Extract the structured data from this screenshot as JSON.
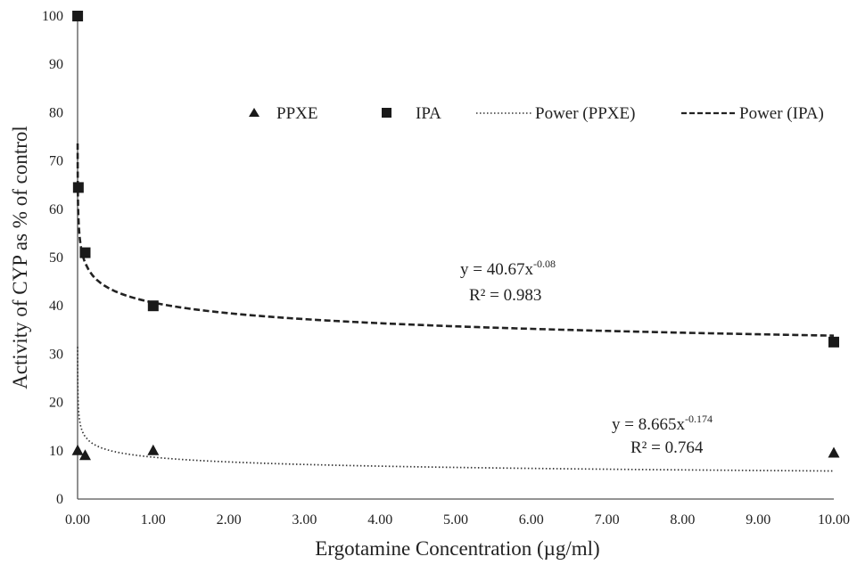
{
  "chart_data": {
    "type": "scatter",
    "xlabel": "Ergotamine Concentration (µg/ml)",
    "ylabel": "Activity of CYP as % of control",
    "xlim": [
      0,
      10
    ],
    "ylim": [
      0,
      100
    ],
    "x_ticks": [
      "0.00",
      "1.00",
      "2.00",
      "3.00",
      "4.00",
      "5.00",
      "6.00",
      "7.00",
      "8.00",
      "9.00",
      "10.00"
    ],
    "y_ticks": [
      "0",
      "10",
      "20",
      "30",
      "40",
      "50",
      "60",
      "70",
      "80",
      "90",
      "100"
    ],
    "grid": false,
    "legend_position": "top-right",
    "series": [
      {
        "name": "PPXE",
        "marker": "triangle",
        "color": "#1a1a1a",
        "points": [
          {
            "x": 0.001,
            "y": 10
          },
          {
            "x": 0.1,
            "y": 9
          },
          {
            "x": 1,
            "y": 10
          },
          {
            "x": 10,
            "y": 9.5
          }
        ]
      },
      {
        "name": "IPA",
        "marker": "square",
        "color": "#1a1a1a",
        "points": [
          {
            "x": 0.001,
            "y": 100
          },
          {
            "x": 0.01,
            "y": 64.5
          },
          {
            "x": 0.1,
            "y": 51
          },
          {
            "x": 1,
            "y": 40
          },
          {
            "x": 10,
            "y": 32.5
          }
        ]
      }
    ],
    "trendlines": [
      {
        "name": "Power (PPXE)",
        "style": "dotted",
        "coefficient": 8.665,
        "exponent": -0.174,
        "equation": {
          "prefix": "y = 8.665x",
          "sup": "-0.174"
        },
        "r_squared_label": "R² = 0.764"
      },
      {
        "name": "Power (IPA)",
        "style": "dashed",
        "coefficient": 40.67,
        "exponent": -0.08,
        "equation": {
          "prefix": "y = 40.67x",
          "sup": "-0.08"
        },
        "r_squared_label": "R² = 0.983"
      }
    ]
  }
}
